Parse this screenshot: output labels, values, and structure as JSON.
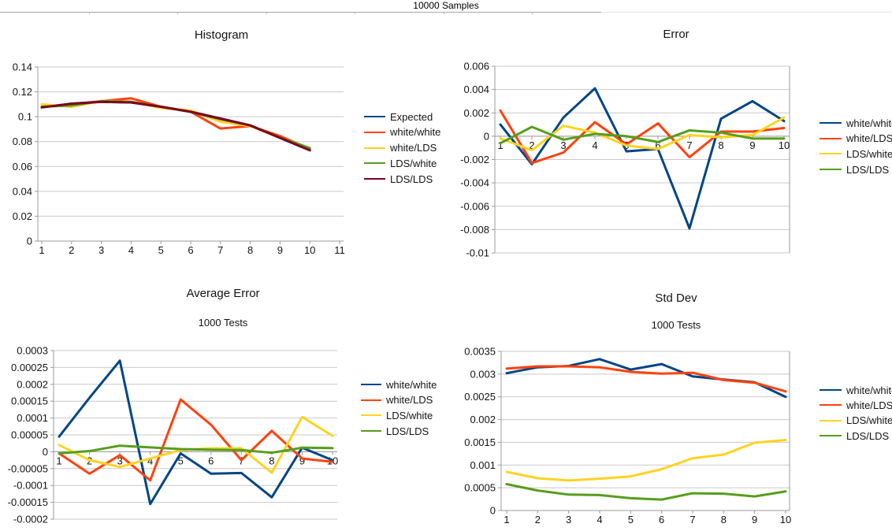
{
  "header": {
    "title": "10000 Samples"
  },
  "palette": {
    "blue": "#004586",
    "orange": "#FF420E",
    "yellow": "#FFD320",
    "green": "#579D1C",
    "maroon": "#7E0021",
    "grid": "#c9c9c9",
    "axis": "#9b9b9b"
  },
  "chart_data": [
    {
      "type": "line",
      "title": "Histogram",
      "xlabel": "",
      "ylabel": "",
      "xlim": [
        1,
        11
      ],
      "ylim": [
        0,
        0.14
      ],
      "grid": true,
      "legend_position": "right",
      "x": [
        1,
        2,
        3,
        4,
        5,
        6,
        7,
        8,
        9,
        10
      ],
      "xticks": {
        "labels": [
          "1",
          "2",
          "3",
          "4",
          "5",
          "6",
          "7",
          "8",
          "9",
          "10",
          "11"
        ],
        "values": [
          1,
          2,
          3,
          4,
          5,
          6,
          7,
          8,
          9,
          10,
          11
        ]
      },
      "yticks": {
        "labels": [
          "0.14",
          "0.12",
          "0.1",
          "0.08",
          "0.06",
          "0.04",
          "0.02",
          "0"
        ],
        "values": [
          0.14,
          0.12,
          0.1,
          0.08,
          0.06,
          0.04,
          0.02,
          0
        ]
      },
      "series": [
        {
          "name": "Expected",
          "color": "#004586",
          "values": [
            0.1075,
            0.1105,
            0.112,
            0.1115,
            0.108,
            0.104,
            0.0985,
            0.093,
            0.083,
            0.073
          ]
        },
        {
          "name": "white/white",
          "color": "#FF420E",
          "values": [
            0.108,
            0.11,
            0.1125,
            0.1148,
            0.108,
            0.104,
            0.0905,
            0.0925,
            0.0845,
            0.074
          ]
        },
        {
          "name": "white/LDS",
          "color": "#FFD320",
          "values": [
            0.11,
            0.108,
            0.1128,
            0.112,
            0.107,
            0.105,
            0.096,
            0.0925,
            0.083,
            0.0745
          ]
        },
        {
          "name": "LDS/white",
          "color": "#579D1C",
          "values": [
            0.108,
            0.109,
            0.1125,
            0.112,
            0.108,
            0.1038,
            0.098,
            0.093,
            0.0832,
            0.0748
          ]
        },
        {
          "name": "LDS/LDS",
          "color": "#7E0021",
          "values": [
            0.1075,
            0.1105,
            0.112,
            0.1115,
            0.108,
            0.104,
            0.0985,
            0.093,
            0.083,
            0.073
          ]
        }
      ]
    },
    {
      "type": "line",
      "title": "Error",
      "xlabel": "",
      "ylabel": "",
      "xlim": [
        1,
        10
      ],
      "ylim": [
        -0.01,
        0.006
      ],
      "grid": true,
      "legend_position": "right",
      "x": [
        1,
        2,
        3,
        4,
        5,
        6,
        7,
        8,
        9,
        10
      ],
      "xticks": {
        "labels": [
          "1",
          "2",
          "3",
          "4",
          "5",
          "6",
          "7",
          "8",
          "9",
          "10"
        ],
        "values": [
          1,
          2,
          3,
          4,
          5,
          6,
          7,
          8,
          9,
          10
        ]
      },
      "yticks": {
        "labels": [
          "0.006",
          "0.004",
          "0.002",
          "0",
          "-0.002",
          "-0.004",
          "-0.006",
          "-0.008",
          "-0.01"
        ],
        "values": [
          0.006,
          0.004,
          0.002,
          0,
          -0.002,
          -0.004,
          -0.006,
          -0.008,
          -0.01
        ]
      },
      "series": [
        {
          "name": "white/white",
          "color": "#004586",
          "values": [
            0.001,
            -0.0024,
            0.0016,
            0.0041,
            -0.0013,
            -0.0011,
            -0.0079,
            0.0015,
            0.003,
            0.0013
          ]
        },
        {
          "name": "white/LDS",
          "color": "#FF420E",
          "values": [
            0.0022,
            -0.0023,
            -0.0014,
            0.0012,
            -0.0007,
            0.0011,
            -0.0018,
            0.0004,
            0.0004,
            0.0007
          ]
        },
        {
          "name": "LDS/white",
          "color": "#FFD320",
          "values": [
            -0.0002,
            -0.0012,
            0.0009,
            0.0003,
            -0.0008,
            -0.0011,
            0.0001,
            -0.0001,
            0.0001,
            0.0016
          ]
        },
        {
          "name": "LDS/LDS",
          "color": "#579D1C",
          "values": [
            -0.0006,
            0.0008,
            -0.0003,
            0.0002,
            0.0,
            -0.0005,
            0.0005,
            0.0003,
            -0.0002,
            -0.0002
          ]
        }
      ]
    },
    {
      "type": "line",
      "title": "Average Error",
      "subtitle": "1000 Tests",
      "xlabel": "",
      "ylabel": "",
      "xlim": [
        1,
        10
      ],
      "ylim": [
        -0.0002,
        0.0003
      ],
      "grid": true,
      "legend_position": "right",
      "x": [
        1,
        2,
        3,
        4,
        5,
        6,
        7,
        8,
        9,
        10
      ],
      "xticks": {
        "labels": [
          "1",
          "2",
          "3",
          "4",
          "5",
          "6",
          "7",
          "8",
          "9",
          "10"
        ],
        "values": [
          1,
          2,
          3,
          4,
          5,
          6,
          7,
          8,
          9,
          10
        ]
      },
      "yticks": {
        "labels": [
          "0.0003",
          "0.00025",
          "0.0002",
          "0.00015",
          "0.0001",
          "0.00005",
          "0",
          "-0.00005",
          "-0.0001",
          "-0.00015",
          "-0.0002"
        ],
        "values": [
          0.0003,
          0.00025,
          0.0002,
          0.00015,
          0.0001,
          5e-05,
          0,
          -5e-05,
          -0.0001,
          -0.00015,
          -0.0002
        ]
      },
      "series": [
        {
          "name": "white/white",
          "color": "#004586",
          "values": [
            4.5e-05,
            0.00016,
            0.00027,
            -0.000155,
            -5e-06,
            -6.5e-05,
            -6.3e-05,
            -0.000135,
            1.2e-05,
            -2.5e-05
          ]
        },
        {
          "name": "white/LDS",
          "color": "#FF420E",
          "values": [
            -5e-06,
            -6.5e-05,
            -1e-05,
            -8.5e-05,
            0.000155,
            8e-05,
            -2.5e-05,
            6.2e-05,
            -2e-05,
            -3e-05
          ]
        },
        {
          "name": "LDS/white",
          "color": "#FFD320",
          "values": [
            2e-05,
            -2.5e-05,
            -4.5e-05,
            -2e-05,
            5e-06,
            1e-05,
            1e-05,
            -6.2e-05,
            0.000103,
            4.7e-05
          ]
        },
        {
          "name": "LDS/LDS",
          "color": "#579D1C",
          "values": [
            -5e-06,
            2e-06,
            1.8e-05,
            1.3e-05,
            8e-06,
            6e-06,
            5e-06,
            -3e-06,
            1.2e-05,
            1.1e-05
          ]
        }
      ]
    },
    {
      "type": "line",
      "title": "Std Dev",
      "subtitle": "1000 Tests",
      "xlabel": "",
      "ylabel": "",
      "xlim": [
        1,
        10
      ],
      "ylim": [
        0,
        0.0035
      ],
      "grid": true,
      "legend_position": "right",
      "x": [
        1,
        2,
        3,
        4,
        5,
        6,
        7,
        8,
        9,
        10
      ],
      "xticks": {
        "labels": [
          "1",
          "2",
          "3",
          "4",
          "5",
          "6",
          "7",
          "8",
          "9",
          "10"
        ],
        "values": [
          1,
          2,
          3,
          4,
          5,
          6,
          7,
          8,
          9,
          10
        ]
      },
      "yticks": {
        "labels": [
          "0.0035",
          "0.003",
          "0.0025",
          "0.002",
          "0.0015",
          "0.001",
          "0.0005",
          "0"
        ],
        "values": [
          0.0035,
          0.003,
          0.0025,
          0.002,
          0.0015,
          0.001,
          0.0005,
          0
        ]
      },
      "series": [
        {
          "name": "white/white",
          "color": "#004586",
          "values": [
            0.00302,
            0.00315,
            0.00318,
            0.00333,
            0.0031,
            0.00322,
            0.00295,
            0.00288,
            0.00282,
            0.0025
          ]
        },
        {
          "name": "white/LDS",
          "color": "#FF420E",
          "values": [
            0.00312,
            0.00317,
            0.00317,
            0.00315,
            0.00305,
            0.00301,
            0.00303,
            0.00287,
            0.00281,
            0.00262
          ]
        },
        {
          "name": "LDS/white",
          "color": "#FFD320",
          "values": [
            0.00085,
            0.00071,
            0.00066,
            0.0007,
            0.00075,
            0.00091,
            0.00115,
            0.00123,
            0.00149,
            0.00155
          ]
        },
        {
          "name": "LDS/LDS",
          "color": "#579D1C",
          "values": [
            0.00058,
            0.00044,
            0.00035,
            0.00034,
            0.00027,
            0.00024,
            0.00038,
            0.00037,
            0.00031,
            0.00042
          ]
        }
      ]
    }
  ]
}
